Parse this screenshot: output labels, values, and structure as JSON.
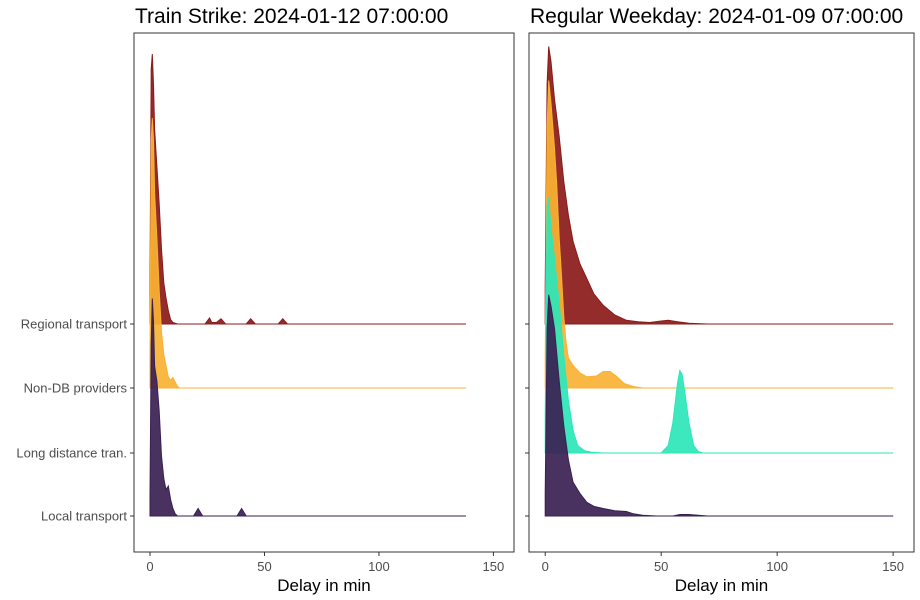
{
  "chart_data": {
    "type": "area",
    "subtype": "ridgeline",
    "xlabel": "Delay in min",
    "categories": [
      "Local transport",
      "Long distance tran.",
      "Non-DB providers",
      "Regional transport"
    ],
    "colors": {
      "Regional transport": "#8b1a1a",
      "Non-DB providers": "#f9b233",
      "Long distance tran.": "#2ee6b8",
      "Local transport": "#3a2052"
    },
    "panels": [
      {
        "title": "Train Strike: 2024-01-12 07:00:00",
        "xlim": [
          -7,
          159
        ],
        "xticks": [
          0,
          50,
          100,
          150
        ],
        "show_ylabels": true,
        "series": [
          {
            "name": "Regional transport",
            "x_range": [
              0,
              138
            ],
            "peak": 3.6,
            "points": [
              [
                0,
                0.5
              ],
              [
                0.5,
                3.4
              ],
              [
                1,
                3.6
              ],
              [
                1.5,
                3.2
              ],
              [
                2,
                2.6
              ],
              [
                3,
                2.1
              ],
              [
                4,
                1.6
              ],
              [
                5,
                1.0
              ],
              [
                6,
                0.55
              ],
              [
                7,
                0.35
              ],
              [
                8,
                0.18
              ],
              [
                9,
                0.06
              ],
              [
                10,
                0.02
              ],
              [
                12,
                0
              ],
              [
                24,
                0
              ],
              [
                26,
                0.08
              ],
              [
                27,
                0.02
              ],
              [
                29,
                0.02
              ],
              [
                31,
                0.07
              ],
              [
                33,
                0
              ],
              [
                42,
                0
              ],
              [
                44,
                0.07
              ],
              [
                46,
                0
              ],
              [
                56,
                0
              ],
              [
                58,
                0.07
              ],
              [
                60,
                0
              ],
              [
                138,
                0
              ]
            ]
          },
          {
            "name": "Non-DB providers",
            "x_range": [
              0,
              138
            ],
            "peak": 3.6,
            "points": [
              [
                0,
                0.5
              ],
              [
                0.5,
                3.3
              ],
              [
                1,
                3.6
              ],
              [
                1.5,
                3.3
              ],
              [
                2,
                2.6
              ],
              [
                3,
                2.0
              ],
              [
                4,
                1.3
              ],
              [
                5,
                0.75
              ],
              [
                6,
                0.45
              ],
              [
                7,
                0.3
              ],
              [
                8,
                0.15
              ],
              [
                9,
                0.1
              ],
              [
                10,
                0.14
              ],
              [
                11,
                0.08
              ],
              [
                12,
                0.02
              ],
              [
                13,
                0
              ],
              [
                138,
                0
              ]
            ]
          },
          {
            "name": "Local transport",
            "x_range": [
              0,
              138
            ],
            "peak": 2.9,
            "points": [
              [
                0,
                0.3
              ],
              [
                0.5,
                2.3
              ],
              [
                1,
                2.9
              ],
              [
                1.5,
                2.6
              ],
              [
                2,
                2.0
              ],
              [
                3,
                1.8
              ],
              [
                4,
                1.4
              ],
              [
                5,
                0.8
              ],
              [
                6,
                0.5
              ],
              [
                7,
                0.35
              ],
              [
                8,
                0.4
              ],
              [
                9,
                0.22
              ],
              [
                10,
                0.1
              ],
              [
                11,
                0.03
              ],
              [
                12,
                0
              ],
              [
                19,
                0
              ],
              [
                21,
                0.1
              ],
              [
                23,
                0
              ],
              [
                38,
                0
              ],
              [
                40,
                0.1
              ],
              [
                42,
                0
              ],
              [
                138,
                0
              ]
            ]
          }
        ]
      },
      {
        "title": "Regular Weekday: 2024-01-09 07:00:00",
        "xlim": [
          -7,
          159
        ],
        "xticks": [
          0,
          50,
          100,
          150
        ],
        "show_ylabels": false,
        "series": [
          {
            "name": "Regional transport",
            "x_range": [
              0,
              150
            ],
            "peak": 3.7,
            "points": [
              [
                0,
                0.5
              ],
              [
                0.8,
                3.2
              ],
              [
                1.5,
                3.7
              ],
              [
                2.5,
                3.5
              ],
              [
                4,
                3.0
              ],
              [
                6,
                2.5
              ],
              [
                8,
                1.9
              ],
              [
                10,
                1.45
              ],
              [
                12,
                1.1
              ],
              [
                15,
                0.8
              ],
              [
                18,
                0.6
              ],
              [
                21,
                0.4
              ],
              [
                25,
                0.25
              ],
              [
                30,
                0.12
              ],
              [
                35,
                0.05
              ],
              [
                40,
                0.03
              ],
              [
                45,
                0.02
              ],
              [
                50,
                0.04
              ],
              [
                53,
                0.05
              ],
              [
                57,
                0.03
              ],
              [
                62,
                0.01
              ],
              [
                70,
                0
              ],
              [
                150,
                0
              ]
            ]
          },
          {
            "name": "Non-DB providers",
            "x_range": [
              0,
              150
            ],
            "peak": 4.1,
            "points": [
              [
                0,
                0.4
              ],
              [
                0.8,
                3.5
              ],
              [
                1.5,
                4.1
              ],
              [
                2.5,
                3.8
              ],
              [
                4,
                3.2
              ],
              [
                5,
                2.7
              ],
              [
                6,
                2.0
              ],
              [
                7,
                1.5
              ],
              [
                8,
                0.95
              ],
              [
                9,
                0.6
              ],
              [
                10,
                0.4
              ],
              [
                12,
                0.3
              ],
              [
                15,
                0.2
              ],
              [
                18,
                0.15
              ],
              [
                22,
                0.16
              ],
              [
                25,
                0.22
              ],
              [
                28,
                0.22
              ],
              [
                31,
                0.15
              ],
              [
                34,
                0.06
              ],
              [
                38,
                0.02
              ],
              [
                42,
                0
              ],
              [
                150,
                0
              ]
            ]
          },
          {
            "name": "Long distance tran.",
            "x_range": [
              0,
              150
            ],
            "peak": 3.4,
            "points": [
              [
                0,
                0.5
              ],
              [
                0.8,
                3.3
              ],
              [
                1.5,
                3.4
              ],
              [
                2.5,
                3.0
              ],
              [
                4,
                2.6
              ],
              [
                6,
                2.0
              ],
              [
                8,
                1.3
              ],
              [
                10,
                0.7
              ],
              [
                12,
                0.3
              ],
              [
                14,
                0.1
              ],
              [
                17,
                0.03
              ],
              [
                20,
                0.01
              ],
              [
                25,
                0
              ],
              [
                50,
                0
              ],
              [
                53,
                0.1
              ],
              [
                55,
                0.4
              ],
              [
                57,
                0.92
              ],
              [
                58,
                1.1
              ],
              [
                59,
                1.05
              ],
              [
                60,
                0.85
              ],
              [
                62,
                0.4
              ],
              [
                64,
                0.1
              ],
              [
                66,
                0.02
              ],
              [
                68,
                0
              ],
              [
                150,
                0
              ]
            ]
          },
          {
            "name": "Local transport",
            "x_range": [
              0,
              150
            ],
            "peak": 2.95,
            "points": [
              [
                0,
                0.3
              ],
              [
                0.8,
                2.5
              ],
              [
                1.5,
                2.95
              ],
              [
                2.5,
                2.8
              ],
              [
                4,
                2.5
              ],
              [
                6,
                1.8
              ],
              [
                8,
                1.2
              ],
              [
                10,
                0.75
              ],
              [
                12,
                0.45
              ],
              [
                15,
                0.3
              ],
              [
                18,
                0.18
              ],
              [
                21,
                0.13
              ],
              [
                25,
                0.1
              ],
              [
                30,
                0.07
              ],
              [
                35,
                0.06
              ],
              [
                38,
                0.03
              ],
              [
                42,
                0.01
              ],
              [
                48,
                0
              ],
              [
                55,
                0
              ],
              [
                58,
                0.02
              ],
              [
                62,
                0.02
              ],
              [
                66,
                0.01
              ],
              [
                70,
                0
              ],
              [
                150,
                0
              ]
            ]
          }
        ]
      }
    ]
  }
}
